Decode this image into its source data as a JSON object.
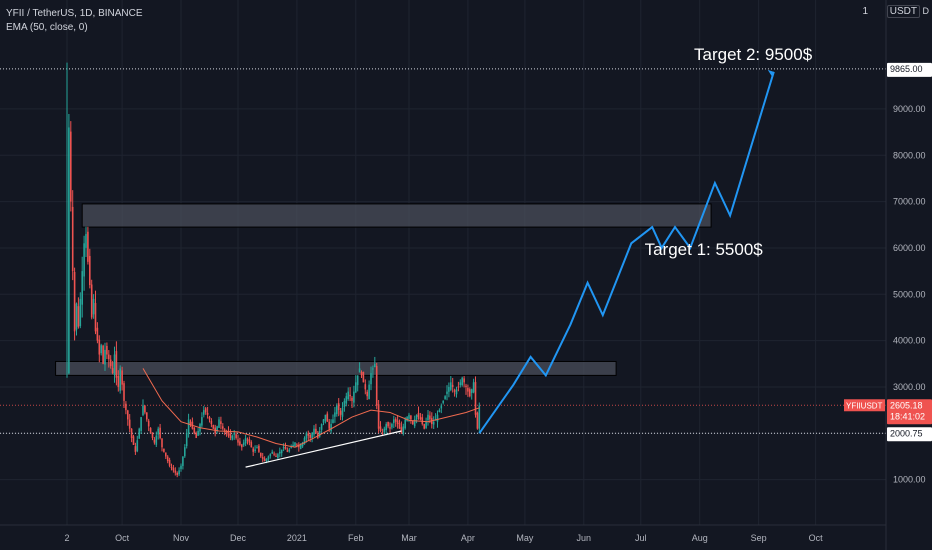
{
  "legend": {
    "symbol": "YFII / TetherUS, 1D, BINANCE",
    "indicator": "EMA (50, close, 0)"
  },
  "currency": {
    "label": "USDT",
    "number": "1",
    "marker": "D"
  },
  "colors": {
    "background": "#131722",
    "grid": "#1f2430",
    "up_candle": "#26a69a",
    "down_candle": "#ef5350",
    "ema": "#f06a4f",
    "projection": "#2196f3",
    "zone_fill": "#4a4e59",
    "trendline": "#ffffff"
  },
  "chart_data": {
    "type": "candlestick",
    "title": "YFII / TetherUS, 1D, BINANCE",
    "ylim": [
      0,
      11350
    ],
    "y_ticks": [
      1000,
      2000,
      3000,
      4000,
      5000,
      6000,
      7000,
      8000,
      9000
    ],
    "y_tick_labels": [
      "1000.00",
      "2000.00",
      "3000.00",
      "4000.00",
      "5000.00",
      "6000.00",
      "7000.00",
      "8000.00",
      "9000.00"
    ],
    "x_ticks": [
      {
        "day": 0,
        "label": "2"
      },
      {
        "day": 29,
        "label": "Oct"
      },
      {
        "day": 60,
        "label": "Nov"
      },
      {
        "day": 90,
        "label": "Dec"
      },
      {
        "day": 121,
        "label": "2021"
      },
      {
        "day": 152,
        "label": "Feb"
      },
      {
        "day": 180,
        "label": "Mar"
      },
      {
        "day": 211,
        "label": "Apr"
      },
      {
        "day": 241,
        "label": "May"
      },
      {
        "day": 272,
        "label": "Jun"
      },
      {
        "day": 302,
        "label": "Jul"
      },
      {
        "day": 333,
        "label": "Aug"
      },
      {
        "day": 364,
        "label": "Sep"
      },
      {
        "day": 394,
        "label": "Oct"
      }
    ],
    "price_path": [
      [
        0,
        3300
      ],
      [
        1,
        8600
      ],
      [
        2,
        7000
      ],
      [
        3,
        5500
      ],
      [
        4,
        4200
      ],
      [
        5,
        4800
      ],
      [
        6,
        4300
      ],
      [
        8,
        5500
      ],
      [
        9,
        6100
      ],
      [
        10,
        6300
      ],
      [
        11,
        5700
      ],
      [
        12,
        5200
      ],
      [
        13,
        4500
      ],
      [
        14,
        4900
      ],
      [
        15,
        4200
      ],
      [
        16,
        4000
      ],
      [
        17,
        3700
      ],
      [
        18,
        3900
      ],
      [
        19,
        3500
      ],
      [
        20,
        3800
      ],
      [
        22,
        3600
      ],
      [
        24,
        3300
      ],
      [
        25,
        3700
      ],
      [
        26,
        3200
      ],
      [
        27,
        3000
      ],
      [
        28,
        3400
      ],
      [
        30,
        2700
      ],
      [
        32,
        2300
      ],
      [
        34,
        1900
      ],
      [
        36,
        1600
      ],
      [
        38,
        2100
      ],
      [
        40,
        2600
      ],
      [
        42,
        2300
      ],
      [
        44,
        2000
      ],
      [
        46,
        1800
      ],
      [
        48,
        2100
      ],
      [
        50,
        1700
      ],
      [
        52,
        1500
      ],
      [
        54,
        1300
      ],
      [
        56,
        1200
      ],
      [
        58,
        1100
      ],
      [
        60,
        1300
      ],
      [
        62,
        1700
      ],
      [
        64,
        2300
      ],
      [
        66,
        2100
      ],
      [
        68,
        1900
      ],
      [
        70,
        2200
      ],
      [
        72,
        2500
      ],
      [
        74,
        2400
      ],
      [
        76,
        2200
      ],
      [
        78,
        2000
      ],
      [
        80,
        2300
      ],
      [
        82,
        2100
      ],
      [
        84,
        2000
      ],
      [
        86,
        1900
      ],
      [
        88,
        2000
      ],
      [
        90,
        1800
      ],
      [
        92,
        1700
      ],
      [
        94,
        1900
      ],
      [
        96,
        1800
      ],
      [
        98,
        1600
      ],
      [
        100,
        1700
      ],
      [
        102,
        1500
      ],
      [
        104,
        1400
      ],
      [
        106,
        1500
      ],
      [
        108,
        1600
      ],
      [
        110,
        1500
      ],
      [
        112,
        1600
      ],
      [
        114,
        1700
      ],
      [
        116,
        1600
      ],
      [
        118,
        1700
      ],
      [
        120,
        1800
      ],
      [
        122,
        1700
      ],
      [
        124,
        1800
      ],
      [
        126,
        2000
      ],
      [
        128,
        1900
      ],
      [
        130,
        2100
      ],
      [
        132,
        1900
      ],
      [
        134,
        2200
      ],
      [
        136,
        2400
      ],
      [
        138,
        2100
      ],
      [
        140,
        2300
      ],
      [
        142,
        2600
      ],
      [
        144,
        2400
      ],
      [
        146,
        2700
      ],
      [
        148,
        2900
      ],
      [
        150,
        2700
      ],
      [
        152,
        3100
      ],
      [
        154,
        3400
      ],
      [
        156,
        3100
      ],
      [
        158,
        2800
      ],
      [
        160,
        3300
      ],
      [
        162,
        3500
      ],
      [
        163,
        2600
      ],
      [
        164,
        2100
      ],
      [
        166,
        2000
      ],
      [
        168,
        2200
      ],
      [
        170,
        2100
      ],
      [
        172,
        2300
      ],
      [
        174,
        2200
      ],
      [
        176,
        2000
      ],
      [
        178,
        2300
      ],
      [
        180,
        2400
      ],
      [
        182,
        2200
      ],
      [
        184,
        2400
      ],
      [
        186,
        2300
      ],
      [
        188,
        2100
      ],
      [
        190,
        2400
      ],
      [
        192,
        2200
      ],
      [
        194,
        2300
      ],
      [
        196,
        2500
      ],
      [
        198,
        2700
      ],
      [
        200,
        2900
      ],
      [
        202,
        3100
      ],
      [
        204,
        2900
      ],
      [
        206,
        3000
      ],
      [
        208,
        3200
      ],
      [
        210,
        3000
      ],
      [
        212,
        2800
      ],
      [
        214,
        3100
      ],
      [
        215,
        2400
      ],
      [
        216,
        2100
      ],
      [
        217,
        2600
      ]
    ],
    "ema_path": [
      [
        40,
        3400
      ],
      [
        50,
        2700
      ],
      [
        60,
        2250
      ],
      [
        70,
        2120
      ],
      [
        80,
        2050
      ],
      [
        90,
        2030
      ],
      [
        100,
        1920
      ],
      [
        110,
        1780
      ],
      [
        120,
        1700
      ],
      [
        130,
        1900
      ],
      [
        140,
        2120
      ],
      [
        150,
        2350
      ],
      [
        160,
        2500
      ],
      [
        170,
        2450
      ],
      [
        180,
        2280
      ],
      [
        190,
        2250
      ],
      [
        200,
        2350
      ],
      [
        210,
        2450
      ],
      [
        217,
        2550
      ]
    ],
    "resistance_zones": [
      {
        "x": [
          8,
          339
        ],
        "y": [
          6450,
          6950
        ]
      },
      {
        "x": [
          -6,
          289
        ],
        "y": [
          3250,
          3550
        ]
      }
    ],
    "trendline": [
      [
        94,
        1270
      ],
      [
        176,
        2050
      ]
    ],
    "projection": [
      [
        217,
        2000
      ],
      [
        235,
        3050
      ],
      [
        244,
        3650
      ],
      [
        252,
        3250
      ],
      [
        265,
        4350
      ],
      [
        274,
        5250
      ],
      [
        282,
        4550
      ],
      [
        297,
        6100
      ],
      [
        308,
        6450
      ],
      [
        313,
        6000
      ],
      [
        320,
        6450
      ],
      [
        328,
        6000
      ],
      [
        341,
        7400
      ],
      [
        349,
        6700
      ],
      [
        372,
        9800
      ]
    ],
    "annotations": [
      {
        "text": "Target 1: 5500$",
        "x": 304,
        "y": 5850
      },
      {
        "text": "Target 2: 9500$",
        "x": 330,
        "y": 10050
      }
    ],
    "reference_lines": [
      {
        "value": 9865,
        "label": "9865.00"
      },
      {
        "value": 2000.75,
        "label": "2000.75"
      }
    ],
    "current_price": {
      "symbol": "YFIIUSDT",
      "price": "2605.18",
      "countdown": "18:41:02",
      "value": 2605.18
    }
  }
}
